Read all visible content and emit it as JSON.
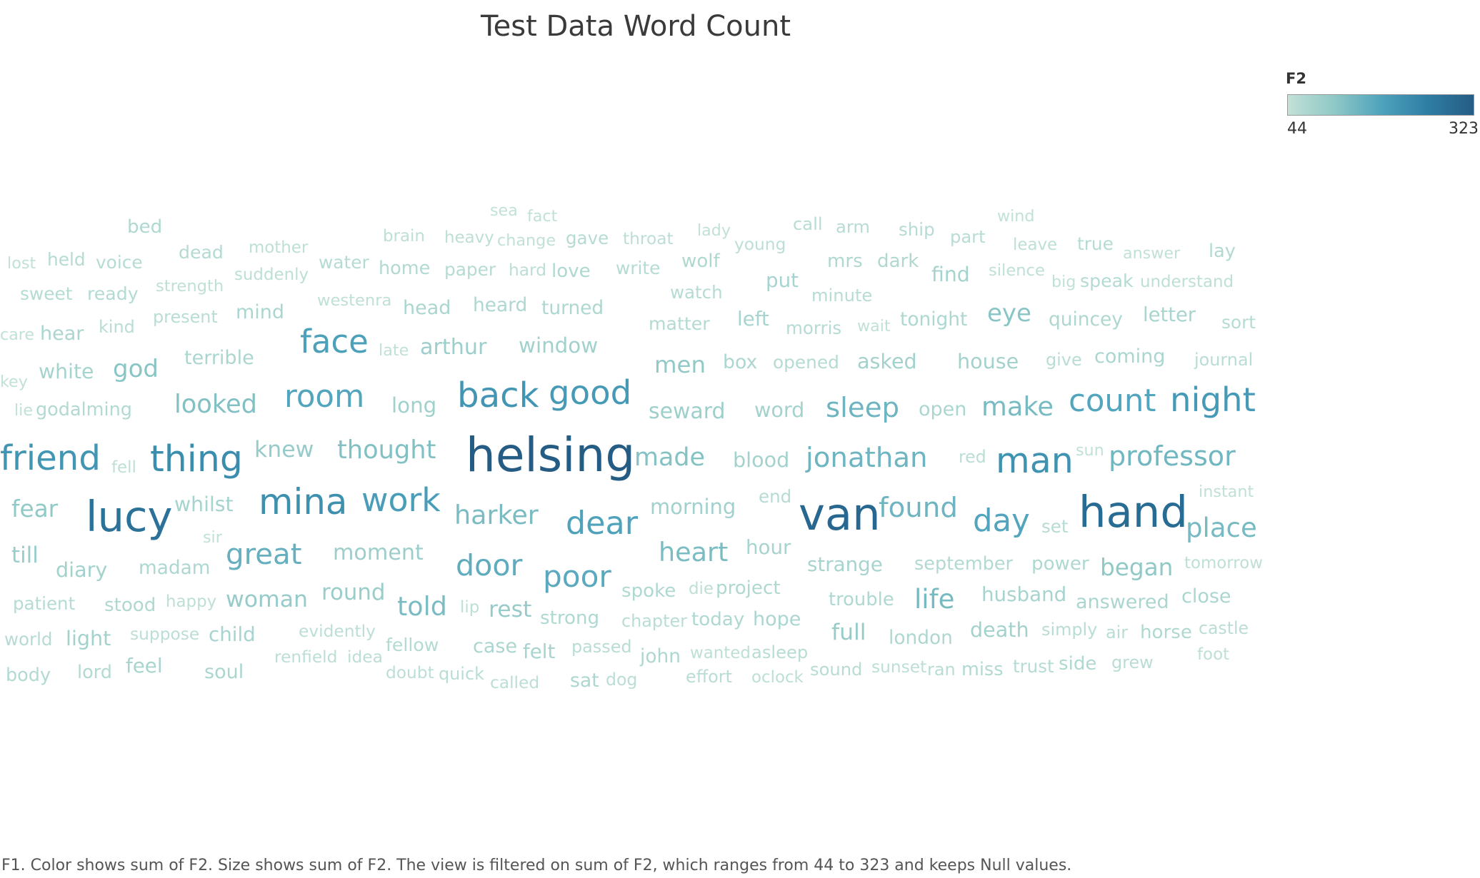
{
  "chart_data": {
    "type": "wordcloud",
    "title": "Test Data Word Count",
    "legend": {
      "title": "F2",
      "min": "44",
      "max": "323",
      "min_value": 44,
      "max_value": 323,
      "colors": [
        "#c2e1d8",
        "#8fc8c6",
        "#4fa3bc",
        "#2e7ea4",
        "#255c84"
      ],
      "placement": "top-right"
    },
    "footnote": "F1.  Color shows sum of F2.  Size shows sum of F2. The view is filtered on sum of F2, which ranges from 44 to 323 and keeps Null values.",
    "words": [
      {
        "text": "sea",
        "value": 45
      },
      {
        "text": "fact",
        "value": 45
      },
      {
        "text": "wind",
        "value": 45
      },
      {
        "text": "bed",
        "value": 70
      },
      {
        "text": "brain",
        "value": 50
      },
      {
        "text": "heavy",
        "value": 50
      },
      {
        "text": "change",
        "value": 46
      },
      {
        "text": "gave",
        "value": 60
      },
      {
        "text": "throat",
        "value": 52
      },
      {
        "text": "lady",
        "value": 45
      },
      {
        "text": "call",
        "value": 58
      },
      {
        "text": "arm",
        "value": 58
      },
      {
        "text": "ship",
        "value": 60
      },
      {
        "text": "part",
        "value": 58
      },
      {
        "text": "lost",
        "value": 46
      },
      {
        "text": "held",
        "value": 62
      },
      {
        "text": "voice",
        "value": 62
      },
      {
        "text": "dead",
        "value": 64
      },
      {
        "text": "mother",
        "value": 50
      },
      {
        "text": "young",
        "value": 52
      },
      {
        "text": "leave",
        "value": 50
      },
      {
        "text": "true",
        "value": 62
      },
      {
        "text": "answer",
        "value": 45
      },
      {
        "text": "lay",
        "value": 66
      },
      {
        "text": "suddenly",
        "value": 50
      },
      {
        "text": "water",
        "value": 62
      },
      {
        "text": "home",
        "value": 66
      },
      {
        "text": "paper",
        "value": 62
      },
      {
        "text": "hard",
        "value": 52
      },
      {
        "text": "love",
        "value": 70
      },
      {
        "text": "write",
        "value": 62
      },
      {
        "text": "wolf",
        "value": 70
      },
      {
        "text": "mrs",
        "value": 70
      },
      {
        "text": "dark",
        "value": 70
      },
      {
        "text": "find",
        "value": 84
      },
      {
        "text": "silence",
        "value": 48
      },
      {
        "text": "sweet",
        "value": 62
      },
      {
        "text": "ready",
        "value": 64
      },
      {
        "text": "strength",
        "value": 48
      },
      {
        "text": "watch",
        "value": 60
      },
      {
        "text": "put",
        "value": 80
      },
      {
        "text": "minute",
        "value": 58
      },
      {
        "text": "big",
        "value": 45
      },
      {
        "text": "speak",
        "value": 64
      },
      {
        "text": "understand",
        "value": 50
      },
      {
        "text": "westenra",
        "value": 48
      },
      {
        "text": "present",
        "value": 56
      },
      {
        "text": "mind",
        "value": 76
      },
      {
        "text": "head",
        "value": 76
      },
      {
        "text": "heard",
        "value": 72
      },
      {
        "text": "turned",
        "value": 72
      },
      {
        "text": "eye",
        "value": 120
      },
      {
        "text": "letter",
        "value": 78
      },
      {
        "text": "care",
        "value": 45
      },
      {
        "text": "hear",
        "value": 76
      },
      {
        "text": "kind",
        "value": 56
      },
      {
        "text": "matter",
        "value": 64
      },
      {
        "text": "left",
        "value": 80
      },
      {
        "text": "morris",
        "value": 60
      },
      {
        "text": "wait",
        "value": 45
      },
      {
        "text": "tonight",
        "value": 72
      },
      {
        "text": "quincey",
        "value": 72
      },
      {
        "text": "sort",
        "value": 62
      },
      {
        "text": "face",
        "value": 190
      },
      {
        "text": "late",
        "value": 46
      },
      {
        "text": "arthur",
        "value": 96
      },
      {
        "text": "window",
        "value": 90
      },
      {
        "text": "terrible",
        "value": 76
      },
      {
        "text": "key",
        "value": 45
      },
      {
        "text": "white",
        "value": 84
      },
      {
        "text": "god",
        "value": 120
      },
      {
        "text": "men",
        "value": 110
      },
      {
        "text": "box",
        "value": 74
      },
      {
        "text": "opened",
        "value": 62
      },
      {
        "text": "asked",
        "value": 86
      },
      {
        "text": "house",
        "value": 86
      },
      {
        "text": "give",
        "value": 56
      },
      {
        "text": "coming",
        "value": 76
      },
      {
        "text": "journal",
        "value": 56
      },
      {
        "text": "lie",
        "value": 45
      },
      {
        "text": "godalming",
        "value": 66
      },
      {
        "text": "looked",
        "value": 128
      },
      {
        "text": "room",
        "value": 180
      },
      {
        "text": "long",
        "value": 90
      },
      {
        "text": "back",
        "value": 210
      },
      {
        "text": "good",
        "value": 200
      },
      {
        "text": "seward",
        "value": 94
      },
      {
        "text": "word",
        "value": 86
      },
      {
        "text": "sleep",
        "value": 150
      },
      {
        "text": "open",
        "value": 76
      },
      {
        "text": "make",
        "value": 138
      },
      {
        "text": "count",
        "value": 180
      },
      {
        "text": "night",
        "value": 200
      },
      {
        "text": "friend",
        "value": 210
      },
      {
        "text": "fell",
        "value": 50
      },
      {
        "text": "thing",
        "value": 225
      },
      {
        "text": "knew",
        "value": 104
      },
      {
        "text": "thought",
        "value": 128
      },
      {
        "text": "helsing",
        "value": 323
      },
      {
        "text": "made",
        "value": 126
      },
      {
        "text": "blood",
        "value": 86
      },
      {
        "text": "jonathan",
        "value": 150
      },
      {
        "text": "red",
        "value": 54
      },
      {
        "text": "man",
        "value": 215
      },
      {
        "text": "sun",
        "value": 45
      },
      {
        "text": "professor",
        "value": 146
      },
      {
        "text": "fear",
        "value": 112
      },
      {
        "text": "lucy",
        "value": 280
      },
      {
        "text": "whilst",
        "value": 84
      },
      {
        "text": "mina",
        "value": 220
      },
      {
        "text": "work",
        "value": 195
      },
      {
        "text": "end",
        "value": 60
      },
      {
        "text": "instant",
        "value": 46
      },
      {
        "text": "harker",
        "value": 136
      },
      {
        "text": "dear",
        "value": 186
      },
      {
        "text": "morning",
        "value": 88
      },
      {
        "text": "van",
        "value": 300
      },
      {
        "text": "found",
        "value": 150
      },
      {
        "text": "day",
        "value": 180
      },
      {
        "text": "set",
        "value": 60
      },
      {
        "text": "hand",
        "value": 290
      },
      {
        "text": "place",
        "value": 140
      },
      {
        "text": "sir",
        "value": 45
      },
      {
        "text": "till",
        "value": 100
      },
      {
        "text": "diary",
        "value": 86
      },
      {
        "text": "madam",
        "value": 72
      },
      {
        "text": "great",
        "value": 160
      },
      {
        "text": "moment",
        "value": 96
      },
      {
        "text": "heart",
        "value": 136
      },
      {
        "text": "hour",
        "value": 80
      },
      {
        "text": "door",
        "value": 166
      },
      {
        "text": "strange",
        "value": 80
      },
      {
        "text": "september",
        "value": 66
      },
      {
        "text": "power",
        "value": 70
      },
      {
        "text": "began",
        "value": 112
      },
      {
        "text": "tomorrow",
        "value": 50
      },
      {
        "text": "poor",
        "value": 172
      },
      {
        "text": "spoke",
        "value": 70
      },
      {
        "text": "die",
        "value": 50
      },
      {
        "text": "project",
        "value": 70
      },
      {
        "text": "trouble",
        "value": 68
      },
      {
        "text": "life",
        "value": 140
      },
      {
        "text": "husband",
        "value": 80
      },
      {
        "text": "answered",
        "value": 76
      },
      {
        "text": "close",
        "value": 76
      },
      {
        "text": "patient",
        "value": 60
      },
      {
        "text": "stood",
        "value": 70
      },
      {
        "text": "happy",
        "value": 50
      },
      {
        "text": "woman",
        "value": 104
      },
      {
        "text": "round",
        "value": 100
      },
      {
        "text": "told",
        "value": 136
      },
      {
        "text": "lip",
        "value": 50
      },
      {
        "text": "rest",
        "value": 104
      },
      {
        "text": "strong",
        "value": 70
      },
      {
        "text": "chapter",
        "value": 56
      },
      {
        "text": "today",
        "value": 70
      },
      {
        "text": "hope",
        "value": 76
      },
      {
        "text": "full",
        "value": 104
      },
      {
        "text": "london",
        "value": 72
      },
      {
        "text": "death",
        "value": 86
      },
      {
        "text": "simply",
        "value": 56
      },
      {
        "text": "air",
        "value": 56
      },
      {
        "text": "horse",
        "value": 70
      },
      {
        "text": "castle",
        "value": 54
      },
      {
        "text": "world",
        "value": 60
      },
      {
        "text": "light",
        "value": 86
      },
      {
        "text": "suppose",
        "value": 52
      },
      {
        "text": "child",
        "value": 80
      },
      {
        "text": "evidently",
        "value": 52
      },
      {
        "text": "renfield",
        "value": 52
      },
      {
        "text": "idea",
        "value": 52
      },
      {
        "text": "fellow",
        "value": 64
      },
      {
        "text": "case",
        "value": 76
      },
      {
        "text": "felt",
        "value": 80
      },
      {
        "text": "passed",
        "value": 56
      },
      {
        "text": "john",
        "value": 72
      },
      {
        "text": "wanted",
        "value": 50
      },
      {
        "text": "asleep",
        "value": 58
      },
      {
        "text": "sunset",
        "value": 52
      },
      {
        "text": "ran",
        "value": 56
      },
      {
        "text": "miss",
        "value": 66
      },
      {
        "text": "trust",
        "value": 60
      },
      {
        "text": "side",
        "value": 70
      },
      {
        "text": "grew",
        "value": 56
      },
      {
        "text": "foot",
        "value": 50
      },
      {
        "text": "body",
        "value": 66
      },
      {
        "text": "lord",
        "value": 66
      },
      {
        "text": "feel",
        "value": 80
      },
      {
        "text": "soul",
        "value": 76
      },
      {
        "text": "doubt",
        "value": 52
      },
      {
        "text": "quick",
        "value": 56
      },
      {
        "text": "called",
        "value": 52
      },
      {
        "text": "sat",
        "value": 74
      },
      {
        "text": "dog",
        "value": 54
      },
      {
        "text": "effort",
        "value": 56
      },
      {
        "text": "oclock",
        "value": 50
      },
      {
        "text": "sound",
        "value": 58
      }
    ]
  }
}
